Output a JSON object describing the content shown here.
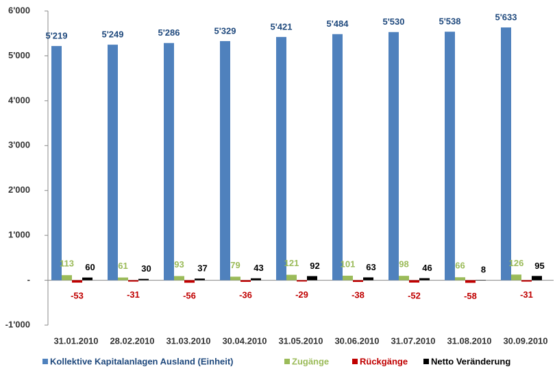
{
  "chart_data": {
    "type": "bar",
    "categories": [
      "31.01.2010",
      "28.02.2010",
      "31.03.2010",
      "30.04.2010",
      "31.05.2010",
      "30.06.2010",
      "31.07.2010",
      "31.08.2010",
      "30.09.2010"
    ],
    "series": [
      {
        "name": "Kollektive Kapitalanlagen Ausland (Einheit)",
        "color": "#4f81bd",
        "values": [
          5219,
          5249,
          5286,
          5329,
          5421,
          5484,
          5530,
          5538,
          5633
        ],
        "value_labels": [
          "5'219",
          "5'249",
          "5'286",
          "5'329",
          "5'421",
          "5'484",
          "5'530",
          "5'538",
          "5'633"
        ]
      },
      {
        "name": "Zugänge",
        "color": "#9bbb59",
        "values": [
          113,
          61,
          93,
          79,
          121,
          101,
          98,
          66,
          126
        ]
      },
      {
        "name": "Rückgänge",
        "color": "#c00000",
        "values": [
          -53,
          -31,
          -56,
          -36,
          -29,
          -38,
          -52,
          -58,
          -31
        ]
      },
      {
        "name": "Netto Veränderung",
        "color": "#000000",
        "values": [
          60,
          30,
          37,
          43,
          92,
          63,
          46,
          8,
          95
        ]
      }
    ],
    "ylim": [
      -1000,
      6000
    ],
    "yticks": [
      {
        "value": -1000,
        "label": "-1'000"
      },
      {
        "value": 0,
        "label": "-"
      },
      {
        "value": 1000,
        "label": "1'000"
      },
      {
        "value": 2000,
        "label": "2'000"
      },
      {
        "value": 3000,
        "label": "3'000"
      },
      {
        "value": 4000,
        "label": "4'000"
      },
      {
        "value": 5000,
        "label": "5'000"
      },
      {
        "value": 6000,
        "label": "6'000"
      }
    ],
    "legend": "bottom"
  }
}
